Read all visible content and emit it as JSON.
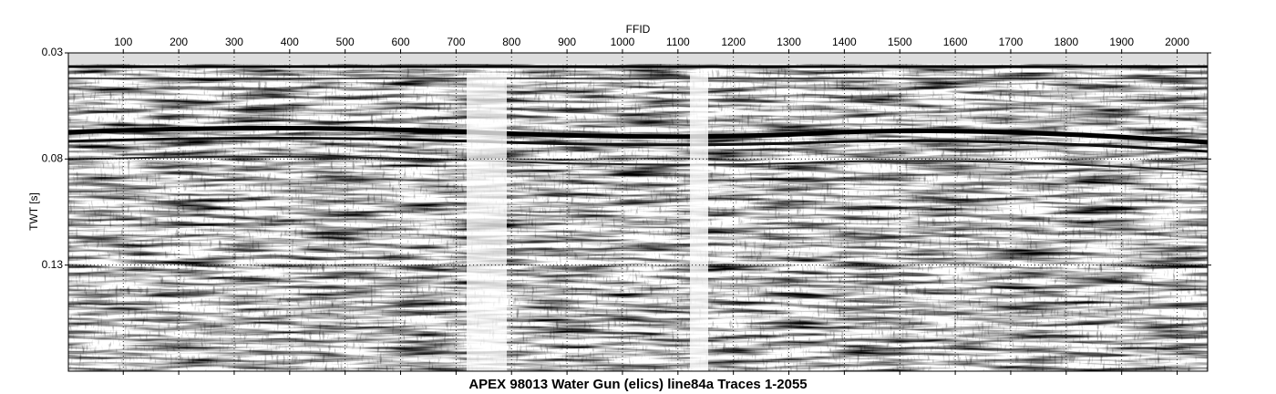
{
  "chart_data": {
    "type": "seismic",
    "title": "APEX 98013 Water Gun (elics) line84a Traces 1-2055",
    "x_label": "FFID",
    "y_label": "TWT [s]",
    "xlim": [
      1,
      2055
    ],
    "xticks": [
      100,
      200,
      300,
      400,
      500,
      600,
      700,
      800,
      900,
      1000,
      1100,
      1200,
      1300,
      1400,
      1500,
      1600,
      1700,
      1800,
      1900,
      2000
    ],
    "ylim": [
      0.03,
      0.18
    ],
    "yticks": [
      0.03,
      0.08,
      0.13
    ],
    "y_inverted": true,
    "grid": true
  }
}
